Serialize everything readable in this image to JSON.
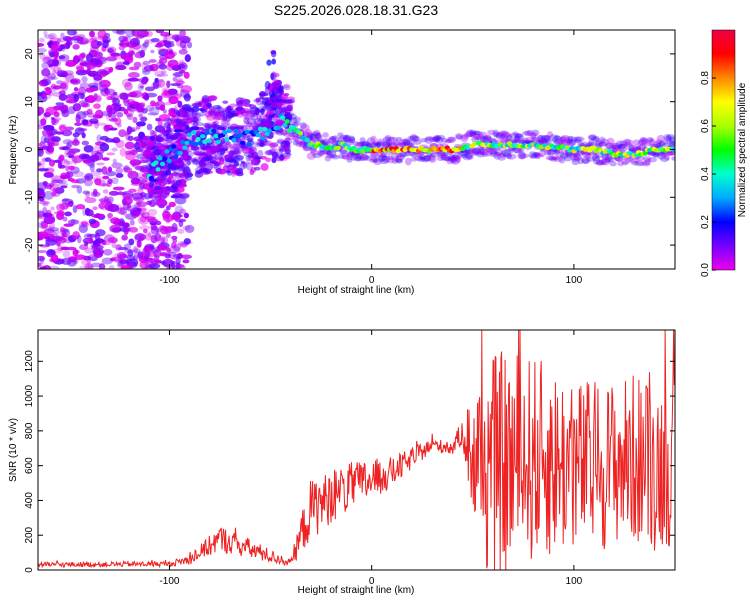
{
  "title": "S225.2026.028.18.31.G23",
  "colors": {
    "snr_line": "#ee2222",
    "spectrogram_noise": "#7722dd",
    "colormap": [
      "#ee00ee",
      "#7700ff",
      "#0000ff",
      "#00aaff",
      "#00ffcc",
      "#00ff00",
      "#aaff00",
      "#ffff00",
      "#ff8800",
      "#ff0000",
      "#ee0044"
    ]
  },
  "chart_data": [
    {
      "type": "heatmap",
      "xlabel": "Height of straight line (km)",
      "ylabel": "Frequency (Hz)",
      "xlim": [
        -165,
        150
      ],
      "ylim": [
        -25,
        25
      ],
      "xticks": [
        -100,
        0,
        100
      ],
      "yticks": [
        -20,
        -10,
        0,
        10,
        20
      ],
      "ridge": {
        "x": [
          -110,
          -100,
          -90,
          -80,
          -70,
          -60,
          -50,
          -45,
          -40,
          -35,
          -30,
          -25,
          -20,
          -15,
          -10,
          -5,
          0,
          10,
          20,
          30,
          40,
          50,
          60,
          70,
          80,
          90,
          100,
          110,
          120,
          130,
          140,
          150
        ],
        "freq": [
          -5,
          -1,
          2,
          3,
          3,
          2,
          5,
          6,
          5,
          3,
          1,
          1,
          0,
          1,
          0,
          0,
          0,
          0,
          0,
          0,
          0,
          1,
          1,
          1,
          1,
          0.5,
          0,
          0,
          -1,
          -1,
          0,
          0
        ]
      },
      "colorbar": {
        "label": "Normalized spectral amplitude",
        "range": [
          0,
          1
        ],
        "ticks": [
          "0.0",
          "0.2",
          "0.4",
          "0.6",
          "0.8"
        ]
      }
    },
    {
      "type": "line",
      "xlabel": "Height of straight line (km)",
      "ylabel": "SNR (10 * v/v)",
      "xlim": [
        -165,
        150
      ],
      "ylim": [
        0,
        1380
      ],
      "xticks": [
        -100,
        0,
        100
      ],
      "yticks": [
        0,
        200,
        400,
        600,
        800,
        1000,
        1200
      ],
      "envelope": {
        "x": [
          -165,
          -100,
          -90,
          -80,
          -75,
          -70,
          -60,
          -50,
          -40,
          -35,
          -30,
          -20,
          -10,
          0,
          10,
          20,
          30,
          40,
          45,
          50,
          55,
          60,
          70,
          80,
          90,
          100,
          110,
          120,
          130,
          140,
          150
        ],
        "mean": [
          30,
          35,
          60,
          140,
          180,
          160,
          120,
          80,
          40,
          200,
          350,
          420,
          480,
          520,
          560,
          640,
          720,
          700,
          800,
          650,
          600,
          600,
          620,
          640,
          620,
          600,
          600,
          620,
          640,
          600,
          620
        ],
        "spread": [
          15,
          15,
          30,
          60,
          80,
          70,
          60,
          40,
          20,
          120,
          180,
          150,
          140,
          120,
          90,
          60,
          40,
          40,
          80,
          400,
          600,
          650,
          650,
          600,
          550,
          500,
          500,
          480,
          500,
          500,
          480
        ]
      }
    }
  ]
}
